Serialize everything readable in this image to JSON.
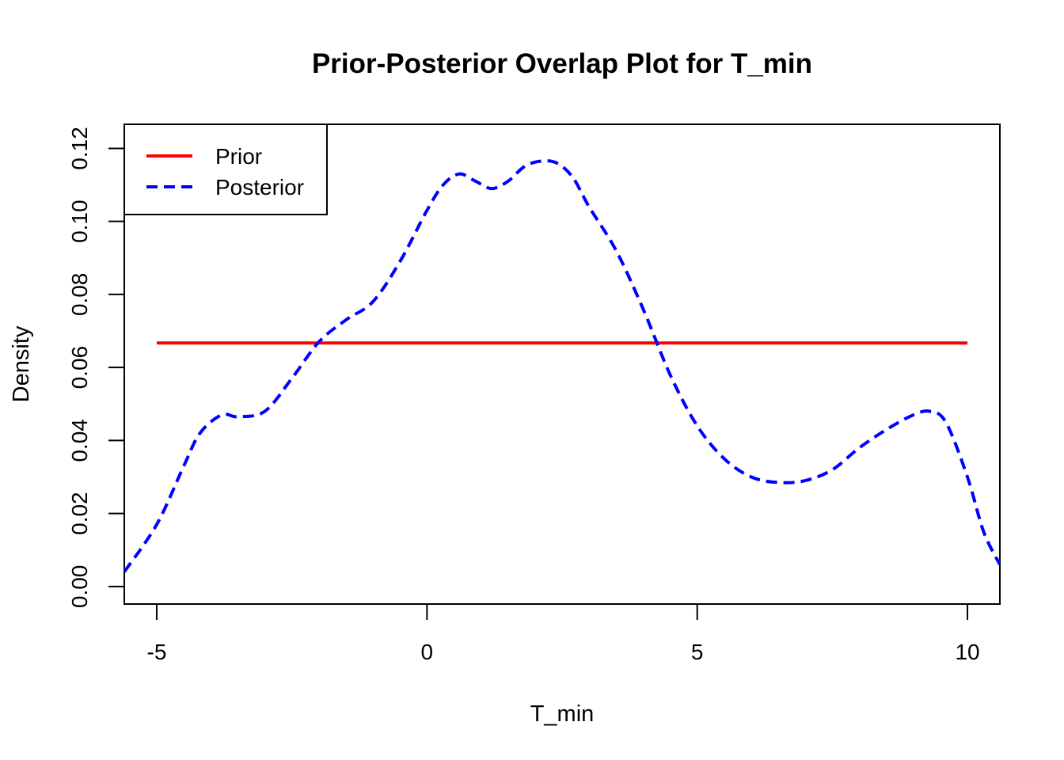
{
  "chart_data": {
    "type": "line",
    "title": "Prior-Posterior Overlap Plot for T_min",
    "xlabel": "T_min",
    "ylabel": "Density",
    "xlim": [
      -5.6,
      10.6
    ],
    "ylim": [
      -0.0048,
      0.1266
    ],
    "x_ticks": [
      -5,
      0,
      5,
      10
    ],
    "y_ticks": [
      0.0,
      0.02,
      0.04,
      0.06,
      0.08,
      0.1,
      0.12
    ],
    "x_tick_labels": [
      "-5",
      "0",
      "5",
      "10"
    ],
    "y_tick_labels": [
      "0.00",
      "0.02",
      "0.04",
      "0.06",
      "0.08",
      "0.10",
      "0.12"
    ],
    "grid": false,
    "legend_position": "top-left",
    "series": [
      {
        "name": "Prior",
        "color": "#ff0000",
        "line_style": "solid",
        "x": [
          -5,
          10
        ],
        "y": [
          0.0667,
          0.0667
        ]
      },
      {
        "name": "Posterior",
        "color": "#0000ff",
        "line_style": "dashed",
        "x": [
          -5.6,
          -5.0,
          -4.5,
          -4.2,
          -3.8,
          -3.5,
          -3.0,
          -2.5,
          -2.0,
          -1.5,
          -1.0,
          -0.5,
          0.0,
          0.3,
          0.6,
          0.9,
          1.2,
          1.5,
          1.8,
          2.1,
          2.4,
          2.7,
          3.0,
          3.5,
          4.0,
          4.5,
          5.0,
          5.5,
          6.0,
          6.5,
          7.0,
          7.5,
          8.0,
          8.5,
          9.0,
          9.3,
          9.6,
          10.0,
          10.3,
          10.6
        ],
        "y": [
          0.004,
          0.017,
          0.033,
          0.042,
          0.047,
          0.0465,
          0.048,
          0.057,
          0.067,
          0.073,
          0.078,
          0.089,
          0.103,
          0.11,
          0.113,
          0.111,
          0.109,
          0.111,
          0.115,
          0.1165,
          0.116,
          0.112,
          0.104,
          0.092,
          0.076,
          0.058,
          0.044,
          0.035,
          0.03,
          0.0285,
          0.029,
          0.032,
          0.038,
          0.043,
          0.047,
          0.048,
          0.045,
          0.03,
          0.015,
          0.006
        ]
      }
    ]
  }
}
